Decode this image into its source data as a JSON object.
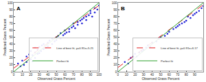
{
  "chart_data": [
    {
      "type": "scatter",
      "title": "A",
      "x_label": "Observed Grass Percent",
      "y_label": "Predicted Grass Percent",
      "xlim": [
        0,
        100
      ],
      "ylim": [
        0,
        100
      ],
      "xticks": [
        0,
        10,
        20,
        30,
        40,
        50,
        60,
        70,
        80,
        90,
        100
      ],
      "yticks": [
        0,
        10,
        20,
        30,
        40,
        50,
        60,
        70,
        80,
        90,
        100
      ],
      "grid": false,
      "legend": "lower right",
      "series": [
        {
          "type": "scatter",
          "marker": "circle",
          "color": "#1f1fd6",
          "x": [
            5,
            8,
            10,
            12,
            15,
            15,
            18,
            20,
            20,
            22,
            22,
            25,
            25,
            25,
            28,
            28,
            30,
            30,
            32,
            33,
            35,
            35,
            38,
            40,
            40,
            42,
            45,
            45,
            48,
            50,
            50,
            52,
            55,
            55,
            58,
            60,
            60,
            62,
            65,
            65,
            68,
            70,
            70,
            72,
            75,
            75,
            78,
            80,
            80,
            82,
            85,
            85,
            88,
            90,
            90,
            92,
            95,
            95,
            98,
            100
          ],
          "values": [
            12,
            8,
            16,
            10,
            22,
            14,
            25,
            18,
            30,
            24,
            15,
            28,
            20,
            35,
            26,
            32,
            27,
            36,
            30,
            38,
            33,
            40,
            35,
            42,
            37,
            45,
            40,
            48,
            44,
            50,
            46,
            52,
            48,
            56,
            53,
            60,
            55,
            57,
            62,
            58,
            64,
            66,
            70,
            63,
            72,
            68,
            74,
            76,
            70,
            78,
            80,
            75,
            82,
            85,
            88,
            80,
            86,
            92,
            90,
            96
          ]
        },
        {
          "type": "line",
          "name": "Line of best fit, y=0.91x+5.21",
          "color": "#e41a1c",
          "line_style": "dashed",
          "x": [
            0,
            100
          ],
          "values": [
            5.21,
            96.21
          ]
        },
        {
          "type": "line",
          "name": "Perfect fit",
          "color": "#2ca02c",
          "line_style": "solid",
          "x": [
            0,
            100
          ],
          "values": [
            0,
            100
          ]
        }
      ]
    },
    {
      "type": "scatter",
      "title": "B",
      "x_label": "Observed Grass Percent",
      "y_label": "Predicted Grass Percent",
      "xlim": [
        0,
        100
      ],
      "ylim": [
        0,
        100
      ],
      "xticks": [
        0,
        10,
        20,
        30,
        40,
        50,
        60,
        70,
        80,
        90,
        100
      ],
      "yticks": [
        0,
        10,
        20,
        30,
        40,
        50,
        60,
        70,
        80,
        90,
        100
      ],
      "grid": false,
      "legend": "lower right",
      "series": [
        {
          "type": "scatter",
          "marker": "circle",
          "color": "#1f1fd6",
          "x": [
            8,
            12,
            15,
            18,
            20,
            22,
            25,
            28,
            30,
            33,
            35,
            38,
            40,
            45,
            48,
            50,
            55,
            58,
            60,
            65,
            68,
            70,
            72,
            75,
            78,
            80,
            82,
            85,
            88,
            90,
            92,
            95,
            98,
            100
          ],
          "values": [
            14,
            12,
            20,
            22,
            26,
            22,
            28,
            30,
            32,
            35,
            38,
            36,
            42,
            44,
            48,
            50,
            52,
            55,
            58,
            62,
            64,
            66,
            68,
            70,
            72,
            74,
            80,
            78,
            82,
            84,
            86,
            88,
            92,
            95
          ]
        },
        {
          "type": "line",
          "name": "Line of best fit, y=0.91x+6.17",
          "color": "#e41a1c",
          "line_style": "dashed",
          "x": [
            0,
            100
          ],
          "values": [
            6.17,
            97.17
          ]
        },
        {
          "type": "line",
          "name": "Perfect fit",
          "color": "#2ca02c",
          "line_style": "solid",
          "x": [
            0,
            100
          ],
          "values": [
            0,
            100
          ]
        }
      ]
    }
  ]
}
